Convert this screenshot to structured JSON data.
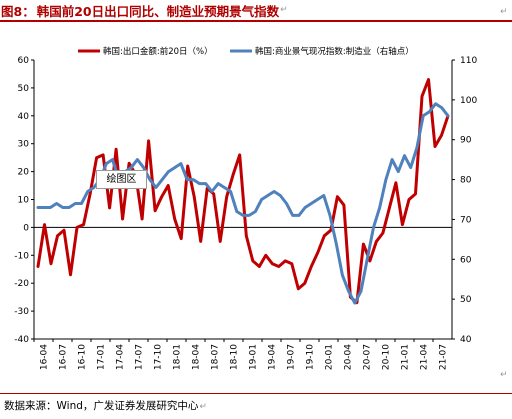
{
  "title": {
    "label": "图8：",
    "text": "韩国前20日出口同比、制造业预期景气指数",
    "para_mark": "↵"
  },
  "corner_marks": {
    "top_right": "↵",
    "bottom_right": "↵"
  },
  "plot_area_label": "绘图区",
  "source": "数据来源：Wind，广发证券发展研究中心",
  "source_para_mark": "↵",
  "colors": {
    "series1": "#c00000",
    "series2": "#4f81bd",
    "title": "#b00000",
    "axis": "#000000"
  },
  "chart_data": {
    "type": "line",
    "title": "",
    "x_tick_labels": [
      "16-04",
      "16-07",
      "16-10",
      "17-01",
      "17-04",
      "17-07",
      "17-10",
      "18-01",
      "18-04",
      "18-07",
      "18-10",
      "19-01",
      "19-04",
      "19-07",
      "19-10",
      "20-01",
      "20-04",
      "20-07",
      "20-10",
      "21-01",
      "21-04",
      "21-07"
    ],
    "y_left": {
      "min": -40,
      "max": 60,
      "step": 10,
      "ticks": [
        "60",
        "50",
        "40",
        "30",
        "20",
        "10",
        "0",
        "-10",
        "-20",
        "-30",
        "-40"
      ]
    },
    "y_right": {
      "min": 40,
      "max": 110,
      "step": 10,
      "ticks": [
        "110",
        "100",
        "90",
        "80",
        "70",
        "60",
        "50",
        "40"
      ]
    },
    "legend": {
      "position": "top",
      "entries": [
        "韩国:出口金额:前20日（%）",
        "韩国:商业景气现况指数:制造业（右轴点）"
      ]
    },
    "series": [
      {
        "name": "韩国:出口金额:前20日（%）",
        "axis": "left",
        "color": "#c00000",
        "x_start": 0,
        "values": [
          -14,
          1,
          -13,
          -3,
          -1,
          -17,
          0,
          1,
          12,
          25,
          26,
          7,
          28,
          3,
          23,
          19,
          3,
          31,
          6,
          11,
          15,
          3,
          -4,
          22,
          11,
          -5,
          14,
          12,
          -5,
          11,
          19,
          26,
          -3,
          -12,
          -14,
          -10,
          -13,
          -14,
          -12,
          -13,
          -22,
          -20,
          -14,
          -9,
          -3,
          -1,
          11,
          8,
          -25,
          -27,
          -6,
          -12,
          -5,
          -2,
          7,
          16,
          1,
          10,
          12,
          47,
          53,
          29,
          33,
          40
        ]
      },
      {
        "name": "韩国:商业景气现况指数:制造业（右轴点）",
        "axis": "right",
        "color": "#4f81bd",
        "x_start": 0,
        "values": [
          73,
          73,
          73,
          74,
          73,
          73,
          74,
          74,
          77,
          78,
          80,
          84,
          85,
          80,
          82,
          83,
          85,
          83,
          80,
          78,
          80,
          82,
          83,
          84,
          80,
          80,
          79,
          79,
          77,
          79,
          78,
          77,
          72,
          71,
          71,
          72,
          75,
          76,
          77,
          76,
          74,
          71,
          71,
          73,
          74,
          75,
          76,
          71,
          64,
          56,
          52,
          49,
          52,
          60,
          68,
          73,
          80,
          85,
          82,
          86,
          83,
          88,
          96,
          97,
          99,
          98,
          96
        ]
      }
    ]
  }
}
